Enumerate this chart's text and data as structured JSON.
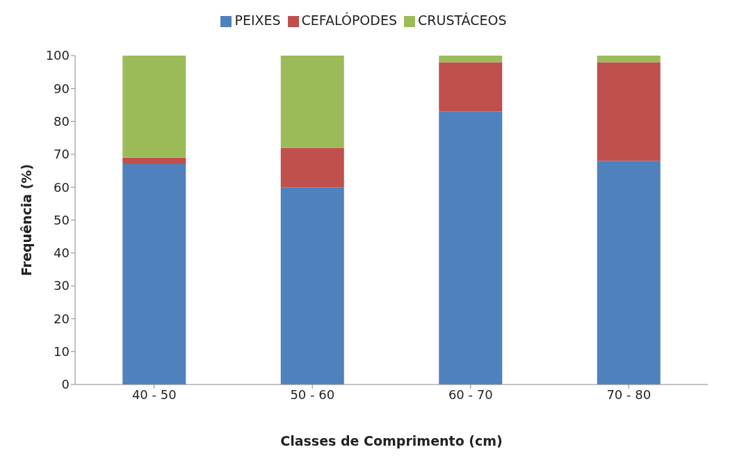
{
  "chart_data": {
    "type": "bar",
    "stacked": true,
    "xlabel": "Classes de Comprimento (cm)",
    "ylabel": "Frequência (%)",
    "categories": [
      "40 - 50",
      "50 - 60",
      "60 - 70",
      "70 - 80"
    ],
    "series": [
      {
        "name": "PEIXES",
        "color": "#4f81bd",
        "values": [
          67,
          60,
          83,
          68
        ]
      },
      {
        "name": "CEFALÓPODES",
        "color": "#c0504d",
        "values": [
          2,
          12,
          15,
          30
        ]
      },
      {
        "name": "CRUSTÁCEOS",
        "color": "#9bbb59",
        "values": [
          31,
          28,
          2,
          2
        ]
      }
    ],
    "ylim": [
      0,
      100
    ],
    "yticks": [
      0,
      10,
      20,
      30,
      40,
      50,
      60,
      70,
      80,
      90,
      100
    ],
    "legend": "top",
    "grid": false
  }
}
